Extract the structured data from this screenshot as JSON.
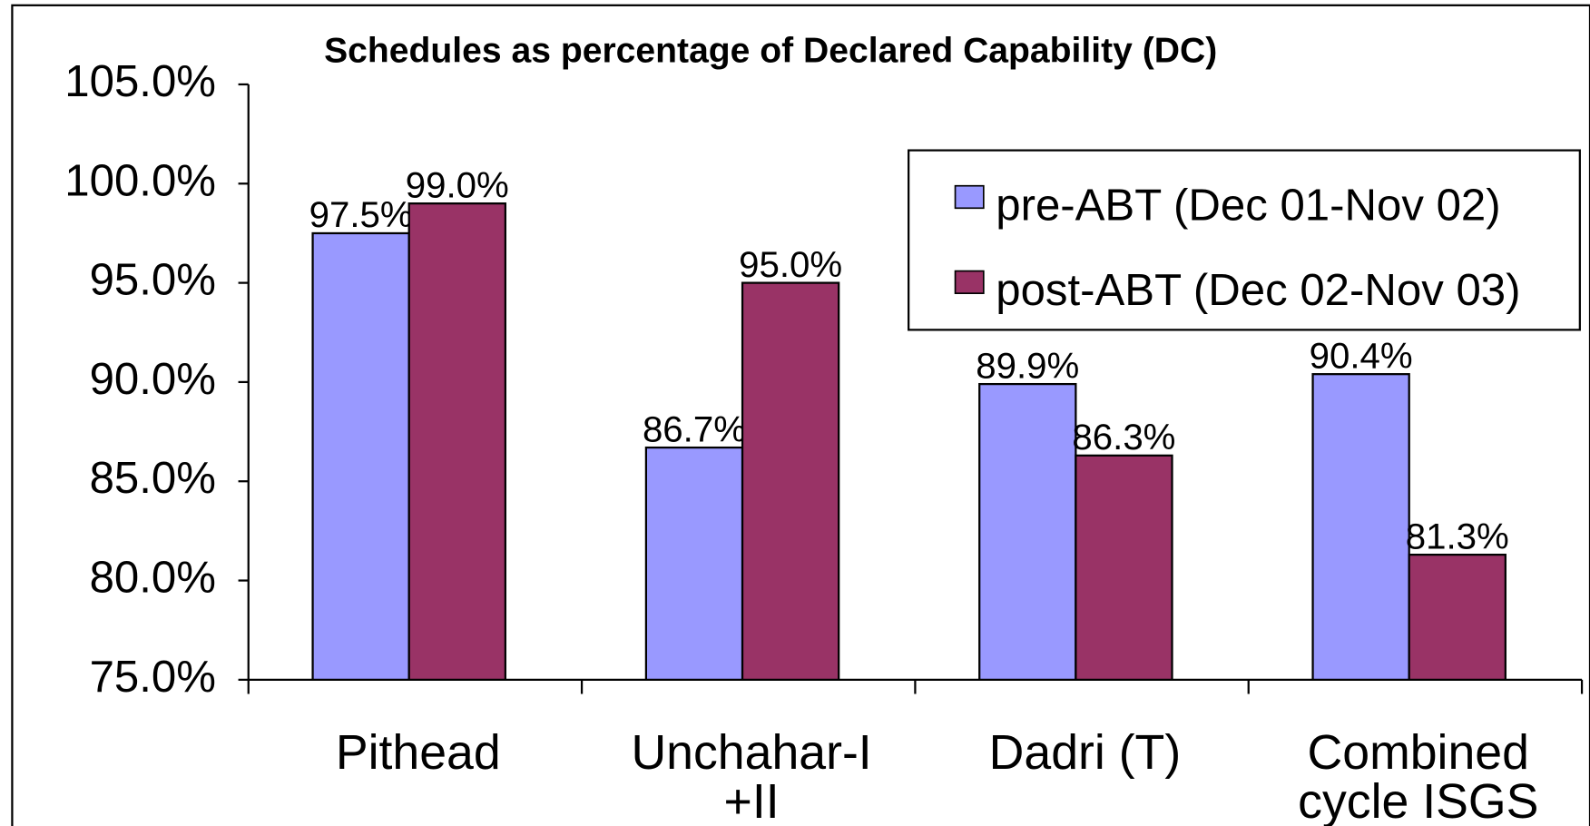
{
  "chart_data": {
    "type": "bar",
    "title": "Schedules as percentage of Declared Capability (DC)",
    "categories": [
      "Pithead",
      "Unchahar-I\n+II",
      "Dadri (T)",
      "Combined\ncycle ISGS"
    ],
    "series": [
      {
        "name": "pre-ABT (Dec 01-Nov 02)",
        "color": "#9999ff",
        "values": [
          97.5,
          86.7,
          89.9,
          90.4
        ],
        "value_labels": [
          "97.5%",
          "86.7%",
          "89.9%",
          "90.4%"
        ]
      },
      {
        "name": "post-ABT (Dec 02-Nov 03)",
        "color": "#993366",
        "values": [
          99.0,
          95.0,
          86.3,
          81.3
        ],
        "value_labels": [
          "99.0%",
          "95.0%",
          "86.3%",
          "81.3%"
        ]
      }
    ],
    "ylim": [
      75,
      105
    ],
    "yticks": [
      {
        "value": 75,
        "label": "75.0%"
      },
      {
        "value": 80,
        "label": "80.0%"
      },
      {
        "value": 85,
        "label": "85.0%"
      },
      {
        "value": 90,
        "label": "90.0%"
      },
      {
        "value": 95,
        "label": "95.0%"
      },
      {
        "value": 100,
        "label": "100.0%"
      },
      {
        "value": 105,
        "label": "105.0%"
      }
    ],
    "legend": "top-right"
  }
}
